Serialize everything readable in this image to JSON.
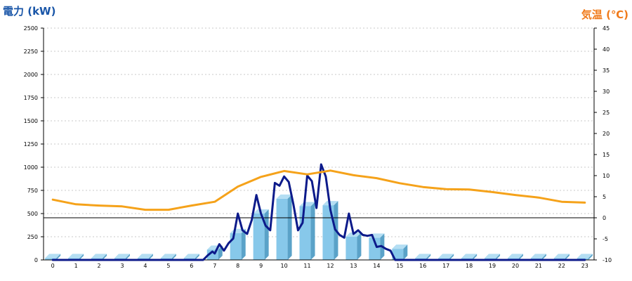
{
  "chart_data": {
    "type": "bar",
    "left_title": "電力 (kW)",
    "right_title": "気温 (℃)",
    "left_title_color": "#1a56a8",
    "right_title_color": "#f07a1a",
    "x_ticks": [
      "0",
      "1",
      "2",
      "3",
      "4",
      "5",
      "6",
      "7",
      "8",
      "9",
      "10",
      "11",
      "12",
      "13",
      "14",
      "15",
      "16",
      "17",
      "18",
      "19",
      "20",
      "21",
      "22",
      "23"
    ],
    "xlim": [
      -0.4,
      23.4
    ],
    "y_left": {
      "range": [
        0,
        2500
      ],
      "ticks": [
        "0",
        "250",
        "500",
        "750",
        "1000",
        "1250",
        "1500",
        "1750",
        "2000",
        "2250",
        "2500"
      ]
    },
    "y_right": {
      "range": [
        -10,
        45
      ],
      "ticks": [
        "-10",
        "-5",
        "0",
        "5",
        "10",
        "15",
        "20",
        "25",
        "30",
        "35",
        "40",
        "45"
      ]
    },
    "grid": true,
    "reference_line_right_axis": 0,
    "series": [
      {
        "kind": "bar",
        "axis": "left",
        "color": "#87c8ea",
        "x": [
          0,
          1,
          2,
          3,
          4,
          5,
          6,
          7,
          8,
          9,
          10,
          11,
          12,
          13,
          14,
          15,
          16,
          17,
          18,
          19,
          20,
          21,
          22,
          23
        ],
        "values": [
          20,
          20,
          20,
          20,
          20,
          20,
          20,
          110,
          290,
          500,
          660,
          580,
          590,
          250,
          240,
          120,
          20,
          20,
          20,
          20,
          20,
          20,
          20,
          20
        ]
      },
      {
        "kind": "line",
        "axis": "left",
        "color": "#0c1a8a",
        "x": [
          0,
          1,
          2,
          3,
          4,
          5,
          6,
          6.5,
          6.7,
          6.9,
          7.0,
          7.2,
          7.4,
          7.6,
          7.8,
          8.0,
          8.2,
          8.4,
          8.6,
          8.8,
          9.0,
          9.2,
          9.4,
          9.6,
          9.8,
          10.0,
          10.2,
          10.4,
          10.6,
          10.8,
          11.0,
          11.2,
          11.4,
          11.6,
          11.8,
          12.0,
          12.2,
          12.4,
          12.6,
          12.8,
          13.0,
          13.2,
          13.4,
          13.6,
          13.8,
          14.0,
          14.2,
          14.4,
          14.6,
          14.8,
          15.0,
          15.2,
          15.4,
          15.6,
          16,
          17,
          18,
          19,
          20,
          21,
          22,
          23
        ],
        "values": [
          0,
          0,
          0,
          0,
          0,
          0,
          0,
          0,
          50,
          90,
          70,
          170,
          100,
          180,
          230,
          500,
          320,
          280,
          430,
          700,
          500,
          370,
          320,
          830,
          800,
          900,
          840,
          600,
          320,
          400,
          910,
          850,
          560,
          1030,
          900,
          540,
          330,
          270,
          240,
          500,
          280,
          320,
          270,
          260,
          270,
          140,
          150,
          120,
          100,
          0,
          0,
          0,
          0,
          0,
          0,
          0,
          0,
          0,
          0,
          0,
          0,
          0
        ]
      },
      {
        "kind": "line",
        "axis": "right",
        "color": "#f5a21a",
        "x": [
          0,
          1,
          2,
          3,
          4,
          5,
          6,
          7,
          8,
          9,
          10,
          11,
          12,
          13,
          14,
          15,
          16,
          17,
          18,
          19,
          20,
          21,
          22,
          23
        ],
        "values": [
          4.3,
          3.2,
          2.9,
          2.7,
          1.9,
          1.9,
          2.9,
          3.8,
          7.4,
          9.7,
          11.1,
          10.3,
          11.2,
          10.1,
          9.4,
          8.2,
          7.3,
          6.8,
          6.7,
          6.1,
          5.4,
          4.8,
          3.8,
          3.6
        ]
      }
    ]
  }
}
